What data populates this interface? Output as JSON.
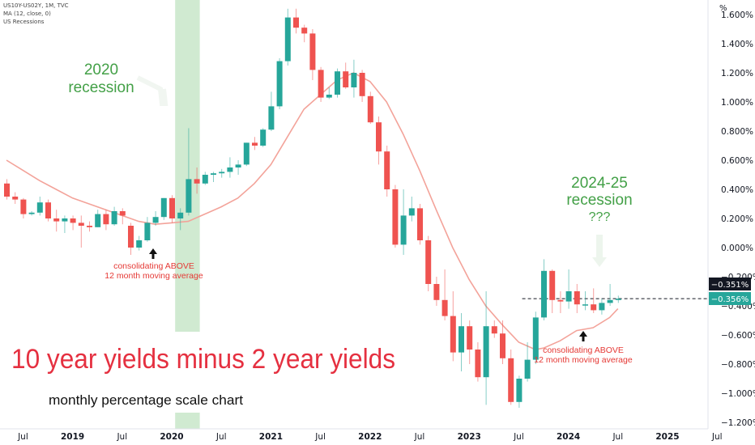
{
  "legend": {
    "symbol_line": "US10Y-US02Y, 1M, TVC",
    "ma_line": "MA (12, close, 0)",
    "recession_line": "US Recessions"
  },
  "colors": {
    "up": "#26a69a",
    "down": "#ef5350",
    "ma": "#f3a39a",
    "recession_band": "#c8e6c9",
    "annotation_green": "#43a047",
    "annotation_red": "#e53935",
    "title_red": "#e53040"
  },
  "annotations": {
    "main_title": "10 year yields minus 2 year yields",
    "subtitle": "monthly percentage scale chart",
    "recession_2020": [
      "2020",
      "recession"
    ],
    "recession_2024": [
      "2024-25",
      "recession",
      "???"
    ],
    "note_left": [
      "consolidating ABOVE",
      "12 month moving average"
    ],
    "note_right": [
      "consolidating ABOVE",
      "12 month moving average"
    ]
  },
  "price_labels": {
    "dark": "−0.351%",
    "teal": "−0.356%"
  },
  "chart_data": {
    "type": "candlestick",
    "y_unit": "%",
    "ylim": [
      -1.2,
      1.65
    ],
    "y_ticks": [
      1.6,
      1.4,
      1.2,
      1.0,
      0.8,
      0.6,
      0.4,
      0.2,
      0.0,
      -0.2,
      -0.4,
      -0.6,
      -0.8,
      -1.0,
      -1.2
    ],
    "y_tick_labels": [
      "1.600%",
      "1.400%",
      "1.200%",
      "1.000%",
      "0.800%",
      "0.600%",
      "0.400%",
      "0.200%",
      "0.000%",
      "−0.200%",
      "−0.400%",
      "−0.600%",
      "−0.800%",
      "−1.000%",
      "−1.200%"
    ],
    "x_start_month": "2018-05",
    "x_ticks": [
      {
        "month": "2018-07",
        "label": "Jul"
      },
      {
        "month": "2019-01",
        "label": "2019"
      },
      {
        "month": "2019-07",
        "label": "Jul"
      },
      {
        "month": "2020-01",
        "label": "2020"
      },
      {
        "month": "2020-07",
        "label": "Jul"
      },
      {
        "month": "2021-01",
        "label": "2021"
      },
      {
        "month": "2021-07",
        "label": "Jul"
      },
      {
        "month": "2022-01",
        "label": "2022"
      },
      {
        "month": "2022-07",
        "label": "Jul"
      },
      {
        "month": "2023-01",
        "label": "2023"
      },
      {
        "month": "2023-07",
        "label": "Jul"
      },
      {
        "month": "2024-01",
        "label": "2024"
      },
      {
        "month": "2024-07",
        "label": "Jul"
      },
      {
        "month": "2025-01",
        "label": "2025"
      },
      {
        "month": "2025-07",
        "label": "Jul"
      }
    ],
    "recession": {
      "start": "2020-02",
      "end": "2020-04"
    },
    "last_value_line": -0.351,
    "candles": [
      {
        "t": "2018-05",
        "o": 0.44,
        "h": 0.47,
        "l": 0.33,
        "c": 0.35
      },
      {
        "t": "2018-06",
        "o": 0.35,
        "h": 0.38,
        "l": 0.3,
        "c": 0.33
      },
      {
        "t": "2018-07",
        "o": 0.33,
        "h": 0.34,
        "l": 0.2,
        "c": 0.23
      },
      {
        "t": "2018-08",
        "o": 0.23,
        "h": 0.25,
        "l": 0.22,
        "c": 0.24
      },
      {
        "t": "2018-09",
        "o": 0.24,
        "h": 0.35,
        "l": 0.22,
        "c": 0.31
      },
      {
        "t": "2018-10",
        "o": 0.31,
        "h": 0.33,
        "l": 0.18,
        "c": 0.2
      },
      {
        "t": "2018-11",
        "o": 0.2,
        "h": 0.26,
        "l": 0.11,
        "c": 0.18
      },
      {
        "t": "2018-12",
        "o": 0.18,
        "h": 0.22,
        "l": 0.1,
        "c": 0.2
      },
      {
        "t": "2019-01",
        "o": 0.2,
        "h": 0.22,
        "l": 0.12,
        "c": 0.17
      },
      {
        "t": "2019-02",
        "o": 0.17,
        "h": 0.22,
        "l": 0.0,
        "c": 0.15
      },
      {
        "t": "2019-03",
        "o": 0.15,
        "h": 0.18,
        "l": 0.11,
        "c": 0.14
      },
      {
        "t": "2019-04",
        "o": 0.14,
        "h": 0.26,
        "l": 0.14,
        "c": 0.23
      },
      {
        "t": "2019-05",
        "o": 0.23,
        "h": 0.26,
        "l": 0.12,
        "c": 0.16
      },
      {
        "t": "2019-06",
        "o": 0.16,
        "h": 0.28,
        "l": 0.15,
        "c": 0.25
      },
      {
        "t": "2019-07",
        "o": 0.25,
        "h": 0.27,
        "l": 0.16,
        "c": 0.22
      },
      {
        "t": "2019-08",
        "o": 0.15,
        "h": 0.17,
        "l": -0.05,
        "c": 0.0
      },
      {
        "t": "2019-09",
        "o": 0.0,
        "h": 0.08,
        "l": -0.02,
        "c": 0.05
      },
      {
        "t": "2019-10",
        "o": 0.05,
        "h": 0.21,
        "l": 0.04,
        "c": 0.17
      },
      {
        "t": "2019-11",
        "o": 0.17,
        "h": 0.25,
        "l": 0.15,
        "c": 0.21
      },
      {
        "t": "2019-12",
        "o": 0.21,
        "h": 0.34,
        "l": 0.19,
        "c": 0.34
      },
      {
        "t": "2020-01",
        "o": 0.34,
        "h": 0.36,
        "l": 0.17,
        "c": 0.2
      },
      {
        "t": "2020-02",
        "o": 0.2,
        "h": 0.27,
        "l": 0.12,
        "c": 0.24
      },
      {
        "t": "2020-03",
        "o": 0.24,
        "h": 0.82,
        "l": 0.22,
        "c": 0.47
      },
      {
        "t": "2020-04",
        "o": 0.47,
        "h": 0.55,
        "l": 0.37,
        "c": 0.44
      },
      {
        "t": "2020-05",
        "o": 0.44,
        "h": 0.52,
        "l": 0.43,
        "c": 0.5
      },
      {
        "t": "2020-06",
        "o": 0.5,
        "h": 0.52,
        "l": 0.45,
        "c": 0.51
      },
      {
        "t": "2020-07",
        "o": 0.51,
        "h": 0.54,
        "l": 0.48,
        "c": 0.52
      },
      {
        "t": "2020-08",
        "o": 0.52,
        "h": 0.62,
        "l": 0.48,
        "c": 0.55
      },
      {
        "t": "2020-09",
        "o": 0.55,
        "h": 0.6,
        "l": 0.5,
        "c": 0.57
      },
      {
        "t": "2020-10",
        "o": 0.57,
        "h": 0.72,
        "l": 0.56,
        "c": 0.72
      },
      {
        "t": "2020-11",
        "o": 0.72,
        "h": 0.76,
        "l": 0.67,
        "c": 0.7
      },
      {
        "t": "2020-12",
        "o": 0.7,
        "h": 0.82,
        "l": 0.69,
        "c": 0.81
      },
      {
        "t": "2021-01",
        "o": 0.81,
        "h": 1.07,
        "l": 0.8,
        "c": 0.97
      },
      {
        "t": "2021-02",
        "o": 0.97,
        "h": 1.3,
        "l": 0.95,
        "c": 1.28
      },
      {
        "t": "2021-03",
        "o": 1.28,
        "h": 1.64,
        "l": 1.25,
        "c": 1.58
      },
      {
        "t": "2021-04",
        "o": 1.58,
        "h": 1.64,
        "l": 1.47,
        "c": 1.51
      },
      {
        "t": "2021-05",
        "o": 1.51,
        "h": 1.53,
        "l": 1.41,
        "c": 1.47
      },
      {
        "t": "2021-06",
        "o": 1.47,
        "h": 1.5,
        "l": 1.15,
        "c": 1.22
      },
      {
        "t": "2021-07",
        "o": 1.22,
        "h": 1.24,
        "l": 1.0,
        "c": 1.03
      },
      {
        "t": "2021-08",
        "o": 1.03,
        "h": 1.1,
        "l": 1.02,
        "c": 1.05
      },
      {
        "t": "2021-09",
        "o": 1.05,
        "h": 1.23,
        "l": 1.03,
        "c": 1.21
      },
      {
        "t": "2021-10",
        "o": 1.21,
        "h": 1.27,
        "l": 1.09,
        "c": 1.1
      },
      {
        "t": "2021-11",
        "o": 1.1,
        "h": 1.29,
        "l": 1.03,
        "c": 1.2
      },
      {
        "t": "2021-12",
        "o": 1.2,
        "h": 1.22,
        "l": 1.0,
        "c": 1.04
      },
      {
        "t": "2022-01",
        "o": 1.04,
        "h": 1.07,
        "l": 0.85,
        "c": 0.86
      },
      {
        "t": "2022-02",
        "o": 0.86,
        "h": 0.9,
        "l": 0.57,
        "c": 0.66
      },
      {
        "t": "2022-03",
        "o": 0.66,
        "h": 0.7,
        "l": 0.35,
        "c": 0.4
      },
      {
        "t": "2022-04",
        "o": 0.4,
        "h": 0.43,
        "l": 0.0,
        "c": 0.02
      },
      {
        "t": "2022-05",
        "o": 0.02,
        "h": 0.4,
        "l": -0.05,
        "c": 0.22
      },
      {
        "t": "2022-06",
        "o": 0.22,
        "h": 0.35,
        "l": 0.18,
        "c": 0.27
      },
      {
        "t": "2022-07",
        "o": 0.27,
        "h": 0.3,
        "l": 0.02,
        "c": 0.05
      },
      {
        "t": "2022-08",
        "o": 0.05,
        "h": 0.08,
        "l": -0.3,
        "c": -0.25
      },
      {
        "t": "2022-09",
        "o": -0.25,
        "h": -0.2,
        "l": -0.4,
        "c": -0.36
      },
      {
        "t": "2022-10",
        "o": -0.36,
        "h": -0.15,
        "l": -0.5,
        "c": -0.47
      },
      {
        "t": "2022-11",
        "o": -0.47,
        "h": -0.3,
        "l": -0.78,
        "c": -0.72
      },
      {
        "t": "2022-12",
        "o": -0.72,
        "h": -0.45,
        "l": -0.85,
        "c": -0.54
      },
      {
        "t": "2023-01",
        "o": -0.54,
        "h": -0.5,
        "l": -0.8,
        "c": -0.7
      },
      {
        "t": "2023-02",
        "o": -0.7,
        "h": -0.65,
        "l": -0.92,
        "c": -0.89
      },
      {
        "t": "2023-03",
        "o": -0.89,
        "h": -0.3,
        "l": -1.08,
        "c": -0.54
      },
      {
        "t": "2023-04",
        "o": -0.54,
        "h": -0.5,
        "l": -0.62,
        "c": -0.59
      },
      {
        "t": "2023-05",
        "o": -0.59,
        "h": -0.5,
        "l": -0.8,
        "c": -0.76
      },
      {
        "t": "2023-06",
        "o": -0.76,
        "h": -0.7,
        "l": -1.08,
        "c": -1.06
      },
      {
        "t": "2023-07",
        "o": -1.06,
        "h": -0.88,
        "l": -1.1,
        "c": -0.9
      },
      {
        "t": "2023-08",
        "o": -0.9,
        "h": -0.65,
        "l": -0.92,
        "c": -0.77
      },
      {
        "t": "2023-09",
        "o": -0.77,
        "h": -0.44,
        "l": -0.8,
        "c": -0.48
      },
      {
        "t": "2023-10",
        "o": -0.48,
        "h": -0.08,
        "l": -0.5,
        "c": -0.16
      },
      {
        "t": "2023-11",
        "o": -0.16,
        "h": -0.15,
        "l": -0.45,
        "c": -0.36
      },
      {
        "t": "2023-12",
        "o": -0.36,
        "h": -0.3,
        "l": -0.45,
        "c": -0.37
      },
      {
        "t": "2024-01",
        "o": -0.37,
        "h": -0.15,
        "l": -0.42,
        "c": -0.3
      },
      {
        "t": "2024-02",
        "o": -0.3,
        "h": -0.25,
        "l": -0.45,
        "c": -0.39
      },
      {
        "t": "2024-03",
        "o": -0.39,
        "h": -0.3,
        "l": -0.43,
        "c": -0.39
      },
      {
        "t": "2024-04",
        "o": -0.39,
        "h": -0.28,
        "l": -0.45,
        "c": -0.43
      },
      {
        "t": "2024-05",
        "o": -0.43,
        "h": -0.35,
        "l": -0.46,
        "c": -0.38
      },
      {
        "t": "2024-06",
        "o": -0.38,
        "h": -0.25,
        "l": -0.4,
        "c": -0.36
      },
      {
        "t": "2024-07",
        "o": -0.36,
        "h": -0.33,
        "l": -0.38,
        "c": -0.351
      }
    ],
    "ma": [
      {
        "t": "2018-05",
        "v": 0.6
      },
      {
        "t": "2018-07",
        "v": 0.53
      },
      {
        "t": "2018-09",
        "v": 0.46
      },
      {
        "t": "2018-11",
        "v": 0.4
      },
      {
        "t": "2019-01",
        "v": 0.34
      },
      {
        "t": "2019-03",
        "v": 0.3
      },
      {
        "t": "2019-05",
        "v": 0.26
      },
      {
        "t": "2019-07",
        "v": 0.22
      },
      {
        "t": "2019-09",
        "v": 0.18
      },
      {
        "t": "2019-11",
        "v": 0.16
      },
      {
        "t": "2020-01",
        "v": 0.17
      },
      {
        "t": "2020-03",
        "v": 0.18
      },
      {
        "t": "2020-05",
        "v": 0.23
      },
      {
        "t": "2020-07",
        "v": 0.28
      },
      {
        "t": "2020-09",
        "v": 0.34
      },
      {
        "t": "2020-11",
        "v": 0.44
      },
      {
        "t": "2021-01",
        "v": 0.57
      },
      {
        "t": "2021-03",
        "v": 0.76
      },
      {
        "t": "2021-05",
        "v": 0.95
      },
      {
        "t": "2021-07",
        "v": 1.05
      },
      {
        "t": "2021-09",
        "v": 1.15
      },
      {
        "t": "2021-11",
        "v": 1.2
      },
      {
        "t": "2022-01",
        "v": 1.14
      },
      {
        "t": "2022-03",
        "v": 1.0
      },
      {
        "t": "2022-05",
        "v": 0.78
      },
      {
        "t": "2022-07",
        "v": 0.53
      },
      {
        "t": "2022-09",
        "v": 0.26
      },
      {
        "t": "2022-11",
        "v": 0.0
      },
      {
        "t": "2023-01",
        "v": -0.22
      },
      {
        "t": "2023-03",
        "v": -0.4
      },
      {
        "t": "2023-05",
        "v": -0.53
      },
      {
        "t": "2023-07",
        "v": -0.65
      },
      {
        "t": "2023-09",
        "v": -0.7
      },
      {
        "t": "2023-10",
        "v": -0.69
      },
      {
        "t": "2023-12",
        "v": -0.64
      },
      {
        "t": "2024-02",
        "v": -0.57
      },
      {
        "t": "2024-04",
        "v": -0.55
      },
      {
        "t": "2024-06",
        "v": -0.48
      },
      {
        "t": "2024-07",
        "v": -0.42
      }
    ]
  }
}
